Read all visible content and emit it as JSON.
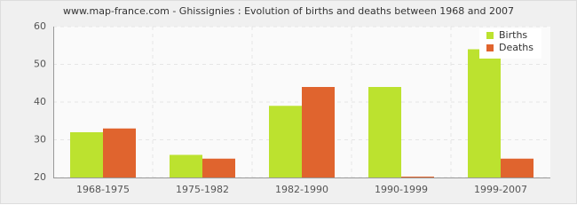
{
  "chart_data": {
    "type": "bar",
    "title": "www.map-france.com - Ghissignies : Evolution of births and deaths between 1968 and 2007",
    "categories": [
      "1968-1975",
      "1975-1982",
      "1982-1990",
      "1990-1999",
      "1999-2007"
    ],
    "series": [
      {
        "name": "Births",
        "color": "#bce22f",
        "values": [
          32,
          26,
          39,
          44,
          54
        ]
      },
      {
        "name": "Deaths",
        "color": "#e0642e",
        "values": [
          33,
          25,
          44,
          20,
          25
        ]
      }
    ],
    "ylim": [
      20,
      60
    ],
    "yticks": [
      20,
      30,
      40,
      50,
      60
    ],
    "grid": true,
    "legend": "top-right"
  }
}
